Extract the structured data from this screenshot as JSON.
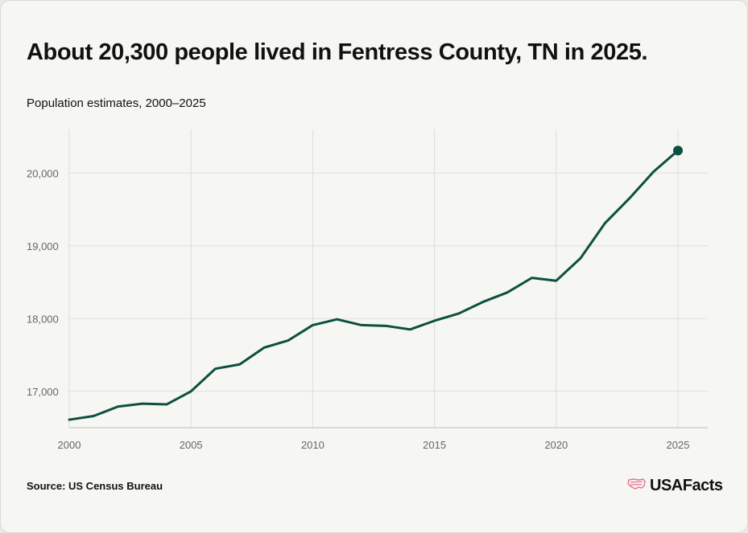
{
  "header": {
    "title": "About 20,300 people lived in Fentress County, TN in 2025.",
    "subtitle": "Population estimates, 2000–2025"
  },
  "footer": {
    "source": "Source: US Census Bureau",
    "logo_text": "USAFacts",
    "logo_icon": "us-map-flag-icon"
  },
  "colors": {
    "line": "#0b5040",
    "grid": "#dddddd",
    "logo_accent": "#e3738f"
  },
  "chart_data": {
    "type": "line",
    "x": [
      2000,
      2001,
      2002,
      2003,
      2004,
      2005,
      2006,
      2007,
      2008,
      2009,
      2010,
      2011,
      2012,
      2013,
      2014,
      2015,
      2016,
      2017,
      2018,
      2019,
      2020,
      2021,
      2022,
      2023,
      2024,
      2025
    ],
    "series": [
      {
        "values": [
          16610,
          16660,
          16790,
          16830,
          16820,
          17000,
          17310,
          17370,
          17600,
          17700,
          17910,
          17990,
          17910,
          17900,
          17850,
          17970,
          18070,
          18230,
          18360,
          18560,
          18520,
          18830,
          19310,
          19650,
          20020,
          20310
        ]
      }
    ],
    "xticks": [
      "2000",
      "2005",
      "2010",
      "2015",
      "2020",
      "2025"
    ],
    "yticks": [
      "17,000",
      "18,000",
      "19,000",
      "20,000"
    ],
    "xlim": [
      2000,
      2025
    ],
    "ylim": [
      16500,
      20600
    ],
    "grid": true,
    "highlight_last_point": true
  }
}
